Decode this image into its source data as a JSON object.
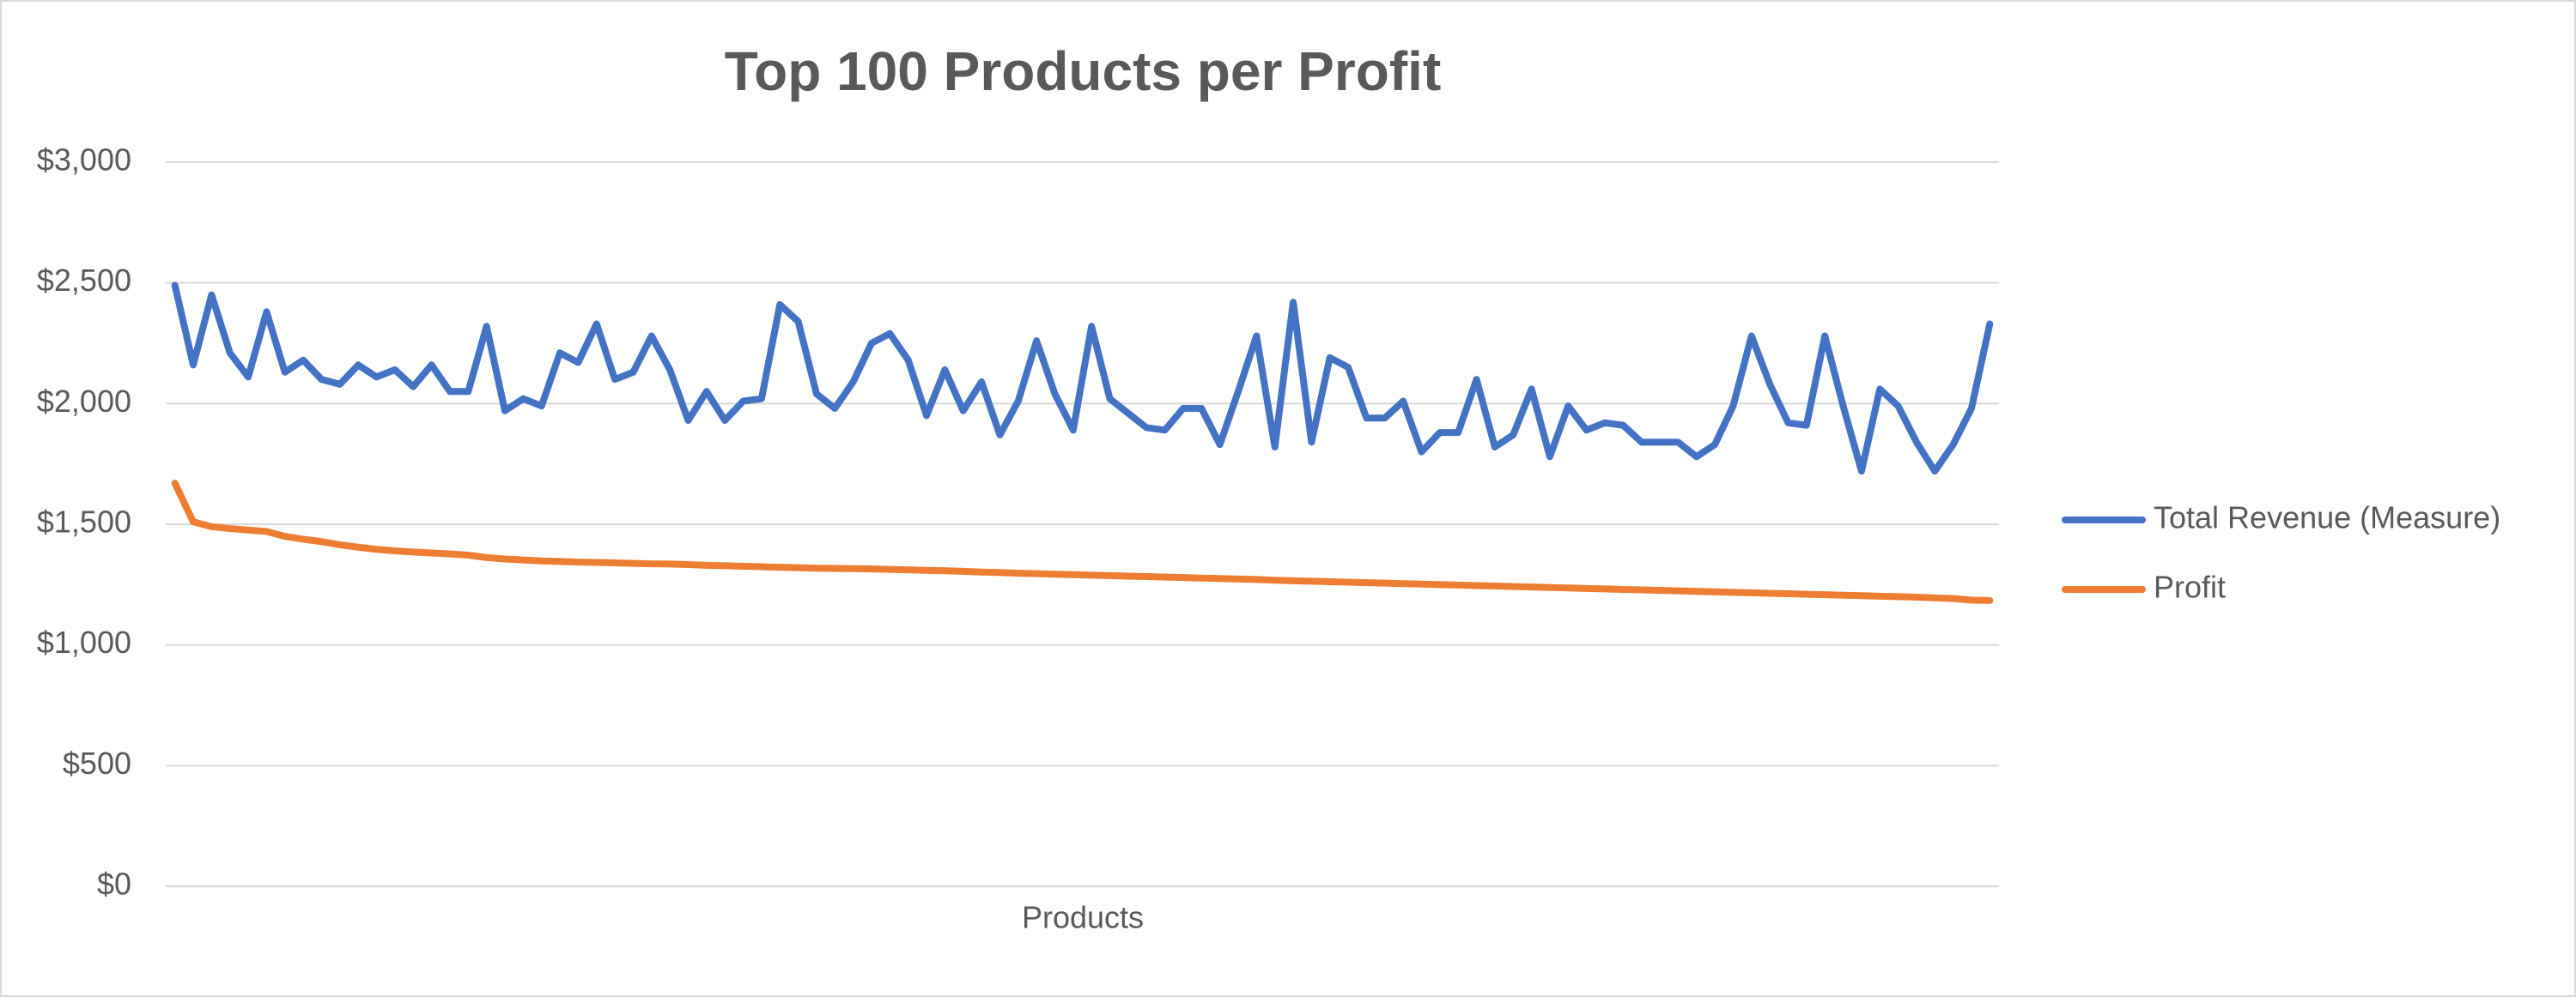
{
  "chart_data": {
    "type": "line",
    "title": "Top 100 Products per Profit",
    "x_label": "Products",
    "categories": [
      null,
      null,
      null,
      null,
      null,
      null,
      null,
      null,
      null,
      null,
      null,
      null,
      null,
      null,
      null,
      null,
      null,
      null,
      null,
      null,
      null,
      null,
      null,
      null,
      null,
      null,
      null,
      null,
      null,
      null,
      null,
      null,
      null,
      null,
      null,
      null,
      null,
      null,
      null,
      null,
      null,
      null,
      null,
      null,
      null,
      null,
      null,
      null,
      null,
      null,
      null,
      null,
      null,
      null,
      null,
      null,
      null,
      null,
      null,
      null,
      null,
      null,
      null,
      null,
      null,
      null,
      null,
      null,
      null,
      null,
      null,
      null,
      null,
      null,
      null,
      null,
      null,
      null,
      null,
      null,
      null,
      null,
      null,
      null,
      null,
      null,
      null,
      null,
      null,
      null,
      null,
      null,
      null,
      null,
      null,
      null,
      null,
      null,
      null,
      null
    ],
    "series": [
      {
        "name": "Total Revenue (Measure)",
        "color": "#4472c4",
        "values": [
          2490,
          2160,
          2450,
          2210,
          2110,
          2380,
          2130,
          2180,
          2100,
          2080,
          2160,
          2110,
          2140,
          2070,
          2160,
          2050,
          2050,
          2320,
          1970,
          2020,
          1990,
          2210,
          2170,
          2330,
          2100,
          2130,
          2280,
          2140,
          1930,
          2050,
          1930,
          2010,
          2020,
          2410,
          2340,
          2040,
          1980,
          2090,
          2250,
          2290,
          2180,
          1950,
          2140,
          1970,
          2090,
          1870,
          2010,
          2260,
          2040,
          1890,
          2320,
          2020,
          1960,
          1900,
          1890,
          1980,
          1980,
          1830,
          2050,
          2280,
          1820,
          2420,
          1840,
          2190,
          2150,
          1940,
          1940,
          2010,
          1800,
          1880,
          1880,
          2100,
          1820,
          1870,
          2060,
          1780,
          1990,
          1890,
          1920,
          1910,
          1840,
          1840,
          1840,
          1780,
          1830,
          1990,
          2280,
          2080,
          1920,
          1910,
          2280,
          1990,
          1720,
          2060,
          1990,
          1840,
          1720,
          1830,
          1980,
          2330
        ]
      },
      {
        "name": "Profit",
        "color": "#ed7d31",
        "values": [
          1670,
          1510,
          1490,
          1482,
          1476,
          1470,
          1450,
          1438,
          1428,
          1415,
          1405,
          1396,
          1390,
          1385,
          1381,
          1377,
          1372,
          1362,
          1356,
          1352,
          1348,
          1346,
          1343,
          1342,
          1340,
          1338,
          1336,
          1335,
          1333,
          1330,
          1328,
          1326,
          1324,
          1322,
          1320,
          1318,
          1317,
          1316,
          1315,
          1313,
          1311,
          1309,
          1307,
          1305,
          1302,
          1300,
          1297,
          1295,
          1293,
          1291,
          1289,
          1287,
          1285,
          1283,
          1281,
          1279,
          1277,
          1275,
          1273,
          1271,
          1268,
          1266,
          1264,
          1262,
          1260,
          1258,
          1256,
          1254,
          1252,
          1250,
          1248,
          1246,
          1244,
          1242,
          1240,
          1238,
          1236,
          1234,
          1232,
          1230,
          1228,
          1226,
          1224,
          1222,
          1220,
          1218,
          1216,
          1214,
          1212,
          1210,
          1208,
          1206,
          1204,
          1202,
          1200,
          1198,
          1195,
          1192,
          1186,
          1184
        ]
      }
    ],
    "ylim": [
      0,
      3000
    ],
    "yticks": [
      {
        "value": 0,
        "label": "$0"
      },
      {
        "value": 500,
        "label": "$500"
      },
      {
        "value": 1000,
        "label": "$1,000"
      },
      {
        "value": 1500,
        "label": "$1,500"
      },
      {
        "value": 2000,
        "label": "$2,000"
      },
      {
        "value": 2500,
        "label": "$2,500"
      },
      {
        "value": 3000,
        "label": "$3,000"
      }
    ],
    "grid": true,
    "legend": "right"
  }
}
